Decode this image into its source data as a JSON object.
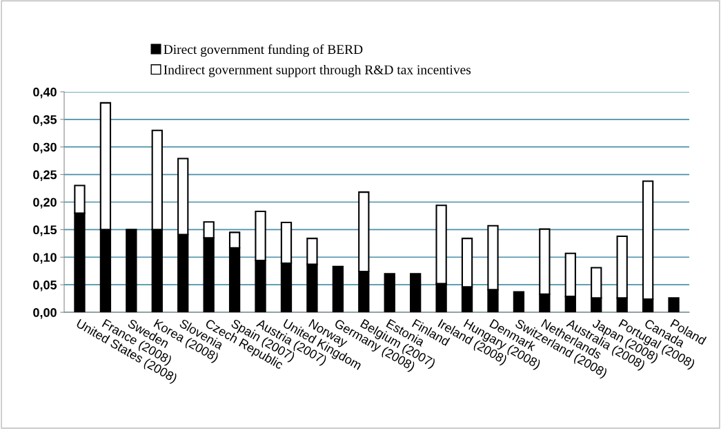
{
  "chart_data": {
    "type": "bar",
    "stacked": true,
    "categories": [
      "United States (2008)",
      "France (2008)",
      "Sweden",
      "Korea (2008)",
      "Slovenia",
      "Czech Republic",
      "Spain (2007)",
      "Austria (2007)",
      "United Kingdom",
      "Norway",
      "Germany (2008)",
      "Belgium (2007)",
      "Estonia",
      "Finland",
      "Ireland (2008)",
      "Hungary (2008)",
      "Denmark",
      "Switzerland (2008)",
      "Netherlands",
      "Australia (2008)",
      "Japan (2008)",
      "Portugal (2008)",
      "Canada",
      "Poland"
    ],
    "series": [
      {
        "name": "Direct government funding of BERD",
        "color": "#000000",
        "values": [
          0.18,
          0.15,
          0.15,
          0.15,
          0.141,
          0.135,
          0.117,
          0.094,
          0.089,
          0.087,
          0.083,
          0.074,
          0.07,
          0.07,
          0.052,
          0.046,
          0.041,
          0.037,
          0.033,
          0.029,
          0.026,
          0.026,
          0.024,
          0.026
        ]
      },
      {
        "name": "Indirect government support through R&D tax incentives",
        "color": "#ffffff",
        "values": [
          0.05,
          0.23,
          null,
          0.18,
          0.138,
          0.029,
          0.028,
          0.089,
          0.074,
          0.047,
          null,
          0.144,
          null,
          null,
          0.142,
          0.088,
          0.116,
          null,
          0.118,
          0.078,
          0.055,
          0.112,
          0.214,
          null
        ]
      }
    ],
    "ylim": [
      0,
      0.4
    ],
    "yticks": [
      {
        "value": 0,
        "label": "0,00"
      },
      {
        "value": 0.05,
        "label": "0,05"
      },
      {
        "value": 0.1,
        "label": "0,10"
      },
      {
        "value": 0.15,
        "label": "0,15"
      },
      {
        "value": 0.2,
        "label": "0,20"
      },
      {
        "value": 0.25,
        "label": "0,25"
      },
      {
        "value": 0.3,
        "label": "0,30"
      },
      {
        "value": 0.35,
        "label": "0,35"
      },
      {
        "value": 0.4,
        "label": "0,40"
      }
    ],
    "grid": "y",
    "legend": "top"
  }
}
